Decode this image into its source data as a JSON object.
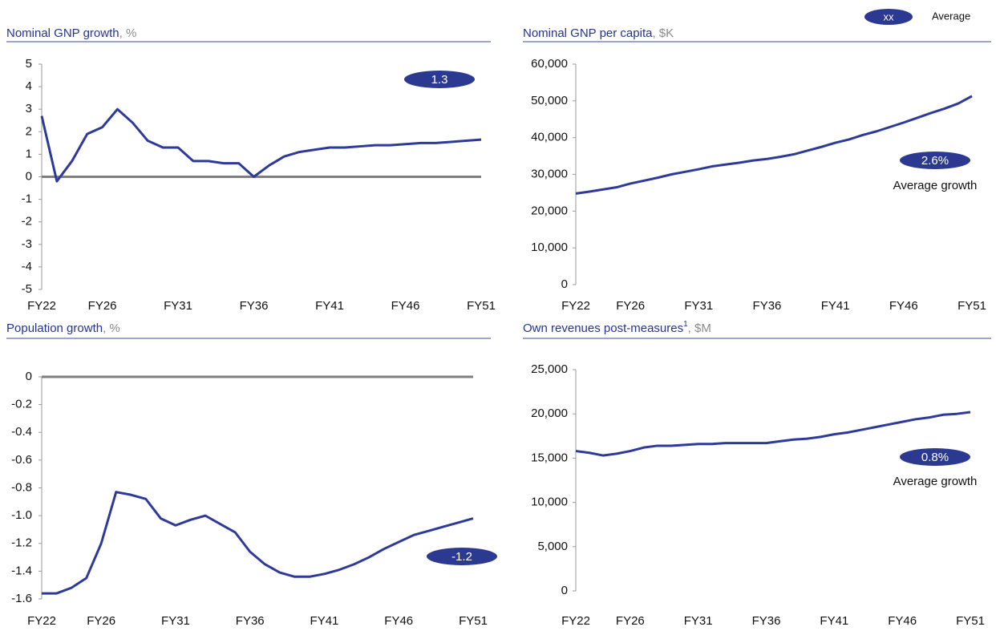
{
  "legend": {
    "marker": "xx",
    "label": "Average"
  },
  "chart_data": [
    {
      "type": "line",
      "title": "Nominal GNP growth",
      "unit": ", %",
      "color": "#2e3a9a",
      "categories": [
        "FY22",
        null,
        null,
        null,
        "FY26",
        null,
        null,
        null,
        null,
        "FY31",
        null,
        null,
        null,
        null,
        "FY36",
        null,
        null,
        null,
        null,
        "FY41",
        null,
        null,
        null,
        null,
        "FY46",
        null,
        null,
        null,
        null,
        "FY51"
      ],
      "values": [
        2.7,
        -0.2,
        0.7,
        1.9,
        2.2,
        3.0,
        2.4,
        1.6,
        1.3,
        1.3,
        0.7,
        0.7,
        0.6,
        0.6,
        0.0,
        0.5,
        0.9,
        1.1,
        1.2,
        1.3,
        1.3,
        1.35,
        1.4,
        1.4,
        1.45,
        1.5,
        1.5,
        1.55,
        1.6,
        1.65
      ],
      "ylim": [
        -5,
        5
      ],
      "yticks": [
        -5,
        -4,
        -3,
        -2,
        -1,
        0,
        1,
        2,
        3,
        4,
        5
      ],
      "zero_line": true,
      "badge": "1.3"
    },
    {
      "type": "line",
      "title": "Nominal GNP per capita",
      "unit": ", $K",
      "color": "#2e3a9a",
      "categories": [
        "FY22",
        null,
        null,
        null,
        "FY26",
        null,
        null,
        null,
        null,
        "FY31",
        null,
        null,
        null,
        null,
        "FY36",
        null,
        null,
        null,
        null,
        "FY41",
        null,
        null,
        null,
        null,
        "FY46",
        null,
        null,
        null,
        null,
        "FY51"
      ],
      "values": [
        24800,
        25300,
        25900,
        26500,
        27500,
        28300,
        29100,
        30000,
        30700,
        31400,
        32200,
        32700,
        33200,
        33800,
        34200,
        34800,
        35500,
        36500,
        37500,
        38600,
        39500,
        40700,
        41700,
        42900,
        44100,
        45400,
        46700,
        47900,
        49300,
        51300
      ],
      "ylim": [
        0,
        60000
      ],
      "yticks": [
        0,
        {
          "value": 10000,
          "label": "10,000"
        },
        {
          "value": 20000,
          "label": "20,000"
        },
        {
          "value": 30000,
          "label": "30,000"
        },
        {
          "value": 40000,
          "label": "40,000"
        },
        {
          "value": 50000,
          "label": "50,000"
        },
        {
          "value": 60000,
          "label": "60,000"
        }
      ],
      "zero_line": false,
      "badge": "2.6%",
      "badge_note": "Average growth"
    },
    {
      "type": "line",
      "title": "Population growth",
      "unit": ", %",
      "color": "#2e3a9a",
      "categories": [
        "FY22",
        null,
        null,
        null,
        "FY26",
        null,
        null,
        null,
        null,
        "FY31",
        null,
        null,
        null,
        null,
        "FY36",
        null,
        null,
        null,
        null,
        "FY41",
        null,
        null,
        null,
        null,
        "FY46",
        null,
        null,
        null,
        null,
        "FY51"
      ],
      "values": [
        -1.56,
        -1.56,
        -1.52,
        -1.45,
        -1.2,
        -0.83,
        -0.85,
        -0.88,
        -1.02,
        -1.07,
        -1.03,
        -1.0,
        -1.06,
        -1.12,
        -1.26,
        -1.35,
        -1.41,
        -1.44,
        -1.44,
        -1.42,
        -1.39,
        -1.35,
        -1.3,
        -1.24,
        -1.19,
        -1.14,
        -1.11,
        -1.08,
        -1.05,
        -1.02
      ],
      "ylim": [
        -1.6,
        0
      ],
      "yticks": [
        -1.6,
        -1.4,
        -1.2,
        {
          "value": -1.0,
          "label": "-1.0"
        },
        -0.8,
        -0.6,
        -0.4,
        -0.2,
        0
      ],
      "zero_line": true,
      "badge": "-1.2"
    },
    {
      "type": "line",
      "title": "Own revenues post-measures",
      "footnote_mark": "1",
      "unit": ", $M",
      "color": "#2e3a9a",
      "categories": [
        "FY22",
        null,
        null,
        null,
        "FY26",
        null,
        null,
        null,
        null,
        "FY31",
        null,
        null,
        null,
        null,
        "FY36",
        null,
        null,
        null,
        null,
        "FY41",
        null,
        null,
        null,
        null,
        "FY46",
        null,
        null,
        null,
        null,
        "FY51"
      ],
      "values": [
        15800,
        15600,
        15300,
        15500,
        15800,
        16200,
        16400,
        16400,
        16500,
        16600,
        16600,
        16700,
        16700,
        16700,
        16700,
        16900,
        17100,
        17200,
        17400,
        17700,
        17900,
        18200,
        18500,
        18800,
        19100,
        19400,
        19600,
        19900,
        20000,
        20200
      ],
      "ylim": [
        0,
        25000
      ],
      "yticks": [
        0,
        {
          "value": 5000,
          "label": "5,000"
        },
        {
          "value": 10000,
          "label": "10,000"
        },
        {
          "value": 15000,
          "label": "15,000"
        },
        {
          "value": 20000,
          "label": "20,000"
        },
        {
          "value": 25000,
          "label": "25,000"
        }
      ],
      "zero_line": false,
      "badge": "0.8%",
      "badge_note": "Average growth"
    }
  ]
}
